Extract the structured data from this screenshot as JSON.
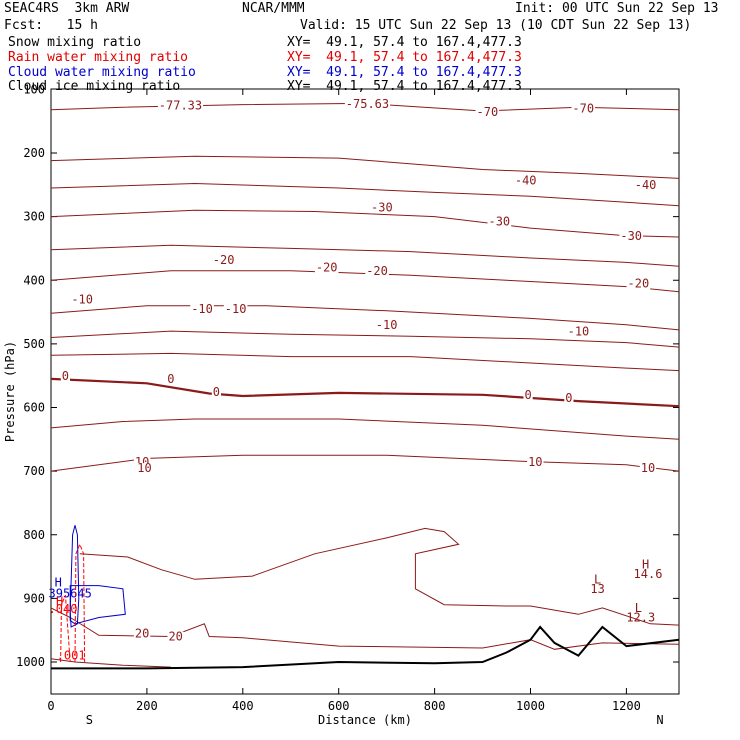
{
  "header": {
    "model": "SEAC4RS  3km ARW",
    "center": "NCAR/MMM",
    "init": "Init: 00 UTC Sun 22 Sep 13",
    "fcst": "Fcst:   15 h",
    "valid": "Valid: 15 UTC Sun 22 Sep 13 (10 CDT Sun 22 Sep 13)"
  },
  "fields": [
    {
      "name": "Snow mixing ratio",
      "xy": "XY=  49.1, 57.4 to 167.4,477.3",
      "color": "#000000"
    },
    {
      "name": "Rain water mixing ratio",
      "xy": "XY=  49.1, 57.4 to 167.4,477.3",
      "color": "#ff0000"
    },
    {
      "name": "Cloud water mixing ratio",
      "xy": "XY=  49.1, 57.4 to 167.4,477.3",
      "color": "#0000cc"
    },
    {
      "name": "Cloud ice mixing ratio",
      "xy": "XY=  49.1, 57.4 to 167.4,477.3",
      "color": "#000000"
    }
  ],
  "chart_data": {
    "type": "line",
    "xlabel": "Distance (km)",
    "ylabel": "Pressure (hPa)",
    "xlim": [
      0,
      1310
    ],
    "ylim": [
      1050,
      100
    ],
    "y_scale": "linear, pressure decreasing upward",
    "x_ticks": [
      "0",
      "200",
      "400",
      "600",
      "800",
      "1000",
      "1200"
    ],
    "y_ticks": [
      "200",
      "300",
      "400",
      "500",
      "600",
      "700",
      "800",
      "900",
      "1000"
    ],
    "y_top_label": "100",
    "x_end_labels": {
      "left": "S",
      "right": "N"
    },
    "colors": {
      "temperature": "#8b1a1a",
      "terrain": "#000000",
      "rain": "#ff0000",
      "cloud_water": "#0000cc"
    },
    "temperature_contour_labels": [
      {
        "text": "-77.33",
        "x": 270,
        "p": 130
      },
      {
        "text": "-75.63",
        "x": 660,
        "p": 128
      },
      {
        "text": "-70",
        "x": 910,
        "p": 140
      },
      {
        "text": "-70",
        "x": 1110,
        "p": 135
      },
      {
        "text": "-40",
        "x": 990,
        "p": 248
      },
      {
        "text": "-40",
        "x": 1240,
        "p": 255
      },
      {
        "text": "-30",
        "x": 690,
        "p": 290
      },
      {
        "text": "-30",
        "x": 935,
        "p": 312
      },
      {
        "text": "-30",
        "x": 1210,
        "p": 335
      },
      {
        "text": "-20",
        "x": 360,
        "p": 373
      },
      {
        "text": "-20",
        "x": 575,
        "p": 385
      },
      {
        "text": "-20",
        "x": 680,
        "p": 390
      },
      {
        "text": "-20",
        "x": 1225,
        "p": 410
      },
      {
        "text": "-10",
        "x": 65,
        "p": 435
      },
      {
        "text": "-10",
        "x": 315,
        "p": 450
      },
      {
        "text": "-10",
        "x": 385,
        "p": 450
      },
      {
        "text": "-10",
        "x": 700,
        "p": 475
      },
      {
        "text": "-10",
        "x": 1100,
        "p": 485
      },
      {
        "text": "0",
        "x": 30,
        "p": 555
      },
      {
        "text": "0",
        "x": 250,
        "p": 560
      },
      {
        "text": "0",
        "x": 345,
        "p": 580
      },
      {
        "text": "0",
        "x": 995,
        "p": 585
      },
      {
        "text": "0",
        "x": 1080,
        "p": 590
      },
      {
        "text": "10",
        "x": 190,
        "p": 690
      },
      {
        "text": "10",
        "x": 195,
        "p": 700
      },
      {
        "text": "10",
        "x": 1010,
        "p": 690
      },
      {
        "text": "10",
        "x": 1245,
        "p": 700
      },
      {
        "text": "20",
        "x": 190,
        "p": 960
      },
      {
        "text": "20",
        "x": 260,
        "p": 965
      }
    ],
    "rain_labels": [
      {
        "text": ".001",
        "x": 42,
        "p": 990
      }
    ],
    "cloud_water_labels": [
      {
        "text": "395645",
        "x": 40,
        "p": 892
      }
    ],
    "extrema_labels": [
      {
        "text": "H",
        "x": 15,
        "p": 875
      },
      {
        "text": "H",
        "x": 18,
        "p": 905
      },
      {
        "text": ".040",
        "x": 25,
        "p": 917
      },
      {
        "text": "L",
        "x": 1140,
        "p": 870
      },
      {
        "text": "13",
        "x": 1140,
        "p": 885
      },
      {
        "text": "H",
        "x": 1240,
        "p": 847
      },
      {
        "text": "14.6",
        "x": 1245,
        "p": 862
      },
      {
        "text": "L",
        "x": 1225,
        "p": 915
      },
      {
        "text": "12.3",
        "x": 1230,
        "p": 930
      }
    ],
    "terrain_surface": {
      "x": [
        0,
        200,
        400,
        600,
        800,
        900,
        950,
        1000,
        1020,
        1050,
        1100,
        1150,
        1200,
        1310
      ],
      "p": [
        1010,
        1010,
        1008,
        1000,
        1002,
        1000,
        985,
        965,
        945,
        970,
        990,
        945,
        975,
        965
      ]
    }
  }
}
